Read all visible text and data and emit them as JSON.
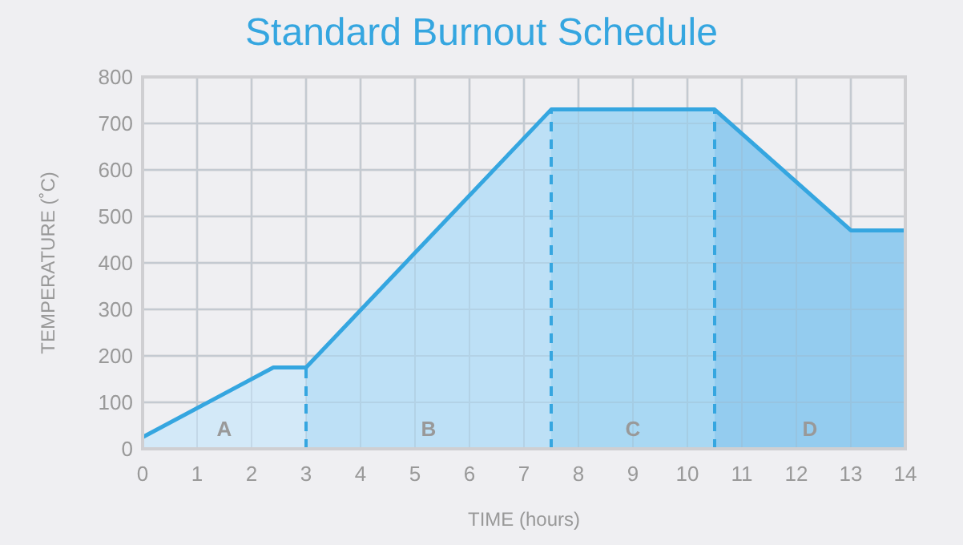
{
  "chart_data": {
    "type": "area",
    "title": "Standard Burnout Schedule",
    "xlabel": "TIME (hours)",
    "ylabel": "TEMPERATURE (˚C)",
    "series": [
      {
        "color": "#d3e9f8",
        "x": [
          0,
          2.4,
          3
        ],
        "values": [
          25,
          175,
          175
        ]
      },
      {
        "color": "#bde0f6",
        "x": [
          3,
          7.5
        ],
        "values": [
          175,
          730
        ]
      },
      {
        "color": "#a9d8f3",
        "x": [
          7.5,
          10.5
        ],
        "values": [
          730,
          730
        ]
      },
      {
        "color": "#94ccef",
        "x": [
          10.5,
          13,
          14
        ],
        "values": [
          730,
          470,
          470
        ]
      },
      {
        "type": "line",
        "color": "#35a6e0",
        "x": [
          0,
          2.4,
          3,
          7.5,
          10.5,
          13,
          14
        ],
        "values": [
          25,
          175,
          175,
          730,
          730,
          470,
          470
        ]
      }
    ],
    "xlim": [
      0,
      14
    ],
    "xticks": [
      0,
      1,
      2,
      3,
      4,
      5,
      6,
      7,
      8,
      9,
      10,
      11,
      12,
      13,
      14
    ],
    "ylim": [
      0,
      800
    ],
    "yticks": [
      0,
      100,
      200,
      300,
      400,
      500,
      600,
      700,
      800
    ],
    "grid": true,
    "annotations": [
      "A",
      "B",
      "C",
      "D"
    ],
    "ref_lines": [
      {
        "axis": "x",
        "value": 3,
        "color": "#35a6e0",
        "line_style": "dashed"
      },
      {
        "axis": "x",
        "value": 7.5,
        "color": "#35a6e0",
        "line_style": "dashed"
      },
      {
        "axis": "x",
        "value": 10.5,
        "color": "#35a6e0",
        "line_style": "dashed"
      }
    ]
  }
}
